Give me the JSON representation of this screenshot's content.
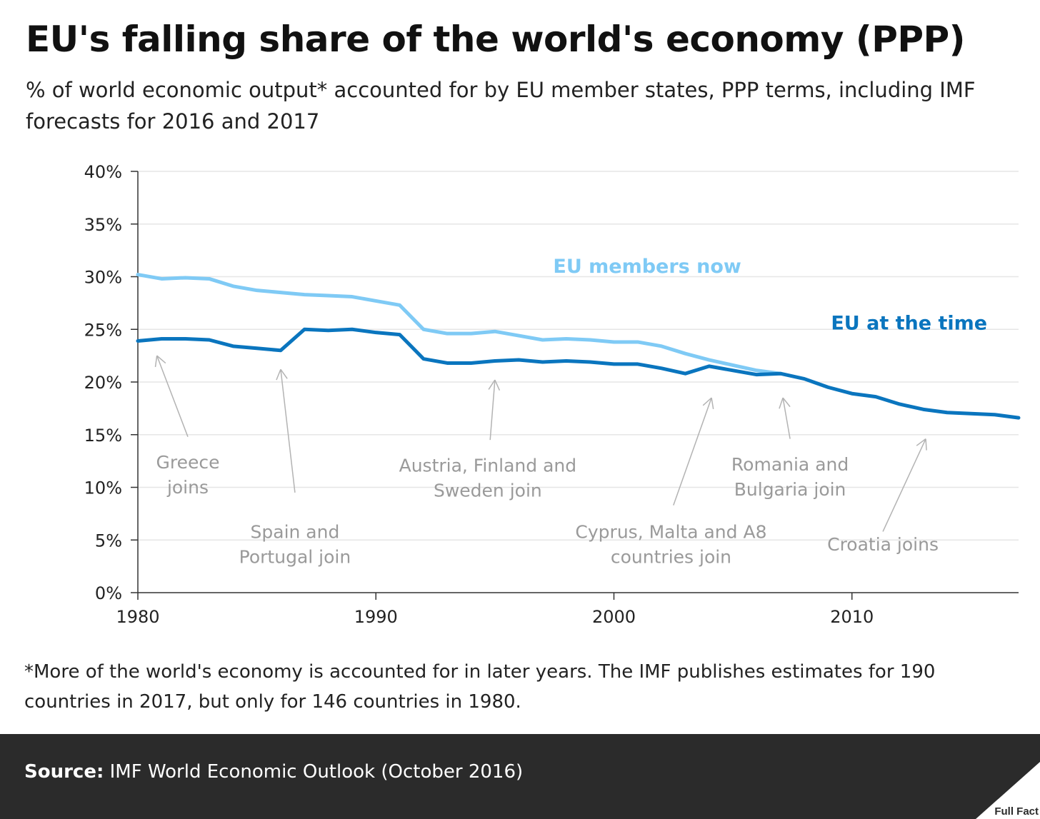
{
  "header": {
    "title": "EU's falling share of the world's economy (PPP)",
    "subtitle": "% of world economic output* accounted for by EU member states, PPP terms, including IMF forecasts for 2016 and 2017"
  },
  "colors": {
    "eu_now": "#7fcaf5",
    "eu_time": "#0a75be",
    "grid": "#e6e6e6",
    "annotation": "#9a9a9a",
    "footer_bg": "#2b2b2b"
  },
  "chart_data": {
    "type": "line",
    "xlim": [
      1980,
      2017
    ],
    "ylim": [
      0,
      40
    ],
    "x_ticks": [
      1980,
      1990,
      2000,
      2010
    ],
    "x_tick_labels": [
      "1980",
      "1990",
      "2000",
      "2010"
    ],
    "y_ticks": [
      0,
      5,
      10,
      15,
      20,
      25,
      30,
      35,
      40
    ],
    "y_tick_labels": [
      "0%",
      "5%",
      "10%",
      "15%",
      "20%",
      "25%",
      "30%",
      "35%",
      "40%"
    ],
    "grid": true,
    "series": [
      {
        "name": "EU members now",
        "color": "#7fcaf5",
        "x": [
          1980,
          1981,
          1982,
          1983,
          1984,
          1985,
          1986,
          1987,
          1988,
          1989,
          1990,
          1991,
          1992,
          1993,
          1994,
          1995,
          1996,
          1997,
          1998,
          1999,
          2000,
          2001,
          2002,
          2003,
          2004,
          2005,
          2006,
          2007
        ],
        "y": [
          30.2,
          29.8,
          29.9,
          29.8,
          29.1,
          28.7,
          28.5,
          28.3,
          28.2,
          28.1,
          27.7,
          27.3,
          25.0,
          24.6,
          24.6,
          24.8,
          24.4,
          24.0,
          24.1,
          24.0,
          23.8,
          23.8,
          23.4,
          22.7,
          22.1,
          21.6,
          21.1,
          20.8
        ]
      },
      {
        "name": "EU at the time",
        "color": "#0a75be",
        "x": [
          1980,
          1981,
          1982,
          1983,
          1984,
          1985,
          1986,
          1987,
          1988,
          1989,
          1990,
          1991,
          1992,
          1993,
          1994,
          1995,
          1996,
          1997,
          1998,
          1999,
          2000,
          2001,
          2002,
          2003,
          2004,
          2005,
          2006,
          2007,
          2008,
          2009,
          2010,
          2011,
          2012,
          2013,
          2014,
          2015,
          2016,
          2017
        ],
        "y": [
          23.9,
          24.1,
          24.1,
          24.0,
          23.4,
          23.2,
          23.0,
          25.0,
          24.9,
          25.0,
          24.7,
          24.5,
          22.2,
          21.8,
          21.8,
          22.0,
          22.1,
          21.9,
          22.0,
          21.9,
          21.7,
          21.7,
          21.3,
          20.8,
          21.5,
          21.1,
          20.7,
          20.8,
          20.3,
          19.5,
          18.9,
          18.6,
          17.9,
          17.4,
          17.1,
          17.0,
          16.9,
          16.6
        ]
      }
    ],
    "series_labels": [
      {
        "text": "EU members now",
        "x": 2001.4,
        "y": 31.0,
        "color": "#7fcaf5"
      },
      {
        "text": "EU at the time",
        "x": 2012.4,
        "y": 25.6,
        "color": "#0a75be"
      }
    ],
    "annotations": [
      {
        "lines": [
          "Greece",
          "joins"
        ],
        "x": 1982.1,
        "y": 12.4,
        "arrow_from": [
          1982.1,
          14.8
        ],
        "arrow_to": [
          1980.8,
          22.5
        ]
      },
      {
        "lines": [
          "Spain and",
          "Portugal join"
        ],
        "x": 1986.6,
        "y": 5.8,
        "arrow_from": [
          1986.6,
          9.5
        ],
        "arrow_to": [
          1986.0,
          21.2
        ]
      },
      {
        "lines": [
          "Austria, Finland and",
          "Sweden join"
        ],
        "x": 1994.7,
        "y": 12.1,
        "arrow_from": [
          1994.8,
          14.5
        ],
        "arrow_to": [
          1995.0,
          20.2
        ]
      },
      {
        "lines": [
          "Cyprus, Malta and A8",
          "countries join"
        ],
        "x": 2002.4,
        "y": 5.8,
        "arrow_from": [
          2002.5,
          8.3
        ],
        "arrow_to": [
          2004.1,
          18.5
        ]
      },
      {
        "lines": [
          "Romania and",
          "Bulgaria join"
        ],
        "x": 2007.4,
        "y": 12.2,
        "arrow_from": [
          2007.4,
          14.6
        ],
        "arrow_to": [
          2007.1,
          18.5
        ]
      },
      {
        "lines": [
          "Croatia joins"
        ],
        "x": 2011.3,
        "y": 4.6,
        "arrow_from": [
          2011.3,
          5.8
        ],
        "arrow_to": [
          2013.1,
          14.6
        ]
      }
    ]
  },
  "footnote": "*More of the world's economy is accounted for in later years.  The IMF publishes estimates for 190 countries in 2017, but only for 146 countries in 1980.",
  "footer": {
    "source_label": "Source:",
    "source_text": " IMF World Economic Outlook (October 2016)",
    "logo_text": "Full Fact"
  }
}
